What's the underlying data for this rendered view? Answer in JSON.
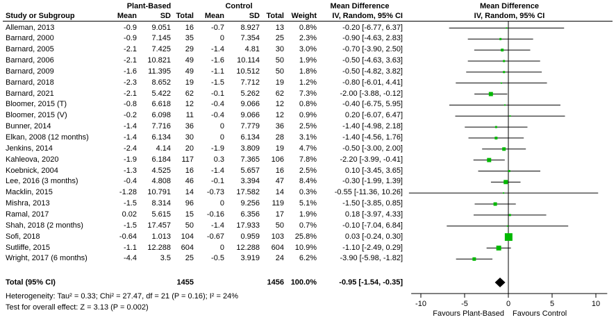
{
  "header": {
    "group1": "Plant-Based",
    "group2": "Control",
    "md_text_title": "Mean Difference",
    "md_plot_title": "Mean Difference",
    "col_study": "Study or Subgroup",
    "col_mean1": "Mean",
    "col_sd1": "SD",
    "col_total1": "Total",
    "col_mean2": "Mean",
    "col_sd2": "SD",
    "col_total2": "Total",
    "col_weight": "Weight",
    "col_ci": "IV, Random, 95% CI",
    "col_plot_ci": "IV, Random, 95% CI"
  },
  "table": {
    "rows": [
      {
        "name": "Alleman, 2013",
        "pb_mean": "-0.9",
        "pb_sd": "9.051",
        "pb_total": "16",
        "c_mean": "-0.7",
        "c_sd": "8.927",
        "c_total": "13",
        "weight": "0.8%",
        "ci": "-0.20 [-6.77, 6.37]"
      },
      {
        "name": "Barnard, 2000",
        "pb_mean": "-0.9",
        "pb_sd": "7.145",
        "pb_total": "35",
        "c_mean": "0",
        "c_sd": "7.354",
        "c_total": "25",
        "weight": "2.3%",
        "ci": "-0.90 [-4.63, 2.83]"
      },
      {
        "name": "Barnard, 2005",
        "pb_mean": "-2.1",
        "pb_sd": "7.425",
        "pb_total": "29",
        "c_mean": "-1.4",
        "c_sd": "4.81",
        "c_total": "30",
        "weight": "3.0%",
        "ci": "-0.70 [-3.90, 2.50]"
      },
      {
        "name": "Barnard, 2006",
        "pb_mean": "-2.1",
        "pb_sd": "10.821",
        "pb_total": "49",
        "c_mean": "-1.6",
        "c_sd": "10.114",
        "c_total": "50",
        "weight": "1.9%",
        "ci": "-0.50 [-4.63, 3.63]"
      },
      {
        "name": "Barnard, 2009",
        "pb_mean": "-1.6",
        "pb_sd": "11.395",
        "pb_total": "49",
        "c_mean": "-1.1",
        "c_sd": "10.512",
        "c_total": "50",
        "weight": "1.8%",
        "ci": "-0.50 [-4.82, 3.82]"
      },
      {
        "name": "Barnard, 2018",
        "pb_mean": "-2.3",
        "pb_sd": "8.652",
        "pb_total": "19",
        "c_mean": "-1.5",
        "c_sd": "7.712",
        "c_total": "19",
        "weight": "1.2%",
        "ci": "-0.80 [-6.01, 4.41]"
      },
      {
        "name": "Barnard, 2021",
        "pb_mean": "-2.1",
        "pb_sd": "5.422",
        "pb_total": "62",
        "c_mean": "-0.1",
        "c_sd": "5.262",
        "c_total": "62",
        "weight": "7.3%",
        "ci": "-2.00 [-3.88, -0.12]"
      },
      {
        "name": "Bloomer, 2015 (T)",
        "pb_mean": "-0.8",
        "pb_sd": "6.618",
        "pb_total": "12",
        "c_mean": "-0.4",
        "c_sd": "9.066",
        "c_total": "12",
        "weight": "0.8%",
        "ci": "-0.40 [-6.75, 5.95]"
      },
      {
        "name": "Bloomer, 2015 (V)",
        "pb_mean": "-0.2",
        "pb_sd": "6.098",
        "pb_total": "11",
        "c_mean": "-0.4",
        "c_sd": "9.066",
        "c_total": "12",
        "weight": "0.9%",
        "ci": "0.20 [-6.07, 6.47]"
      },
      {
        "name": "Bunner, 2014",
        "pb_mean": "-1.4",
        "pb_sd": "7.716",
        "pb_total": "36",
        "c_mean": "0",
        "c_sd": "7.779",
        "c_total": "36",
        "weight": "2.5%",
        "ci": "-1.40 [-4.98, 2.18]"
      },
      {
        "name": "Elkan, 2008 (12 months)",
        "pb_mean": "-1.4",
        "pb_sd": "6.134",
        "pb_total": "30",
        "c_mean": "0",
        "c_sd": "6.134",
        "c_total": "28",
        "weight": "3.1%",
        "ci": "-1.40 [-4.56, 1.76]"
      },
      {
        "name": "Jenkins, 2014",
        "pb_mean": "-2.4",
        "pb_sd": "4.14",
        "pb_total": "20",
        "c_mean": "-1.9",
        "c_sd": "3.809",
        "c_total": "19",
        "weight": "4.7%",
        "ci": "-0.50 [-3.00, 2.00]"
      },
      {
        "name": "Kahleova, 2020",
        "pb_mean": "-1.9",
        "pb_sd": "6.184",
        "pb_total": "117",
        "c_mean": "0.3",
        "c_sd": "7.365",
        "c_total": "106",
        "weight": "7.8%",
        "ci": "-2.20 [-3.99, -0.41]"
      },
      {
        "name": "Koebnick, 2004",
        "pb_mean": "-1.3",
        "pb_sd": "4.525",
        "pb_total": "16",
        "c_mean": "-1.4",
        "c_sd": "5.657",
        "c_total": "16",
        "weight": "2.5%",
        "ci": "0.10 [-3.45, 3.65]"
      },
      {
        "name": "Lee, 2016 (3 months)",
        "pb_mean": "-0.4",
        "pb_sd": "4.808",
        "pb_total": "46",
        "c_mean": "-0.1",
        "c_sd": "3.394",
        "c_total": "47",
        "weight": "8.4%",
        "ci": "-0.30 [-1.99, 1.39]"
      },
      {
        "name": "Macklin, 2015",
        "pb_mean": "-1.28",
        "pb_sd": "10.791",
        "pb_total": "14",
        "c_mean": "-0.73",
        "c_sd": "17.582",
        "c_total": "14",
        "weight": "0.3%",
        "ci": "-0.55 [-11.36, 10.26]"
      },
      {
        "name": "Mishra, 2013",
        "pb_mean": "-1.5",
        "pb_sd": "8.314",
        "pb_total": "96",
        "c_mean": "0",
        "c_sd": "9.256",
        "c_total": "119",
        "weight": "5.1%",
        "ci": "-1.50 [-3.85, 0.85]"
      },
      {
        "name": "Ramal, 2017",
        "pb_mean": "0.02",
        "pb_sd": "5.615",
        "pb_total": "15",
        "c_mean": "-0.16",
        "c_sd": "6.356",
        "c_total": "17",
        "weight": "1.9%",
        "ci": "0.18 [-3.97, 4.33]"
      },
      {
        "name": "Shah, 2018 (2 months)",
        "pb_mean": "-1.5",
        "pb_sd": "17.457",
        "pb_total": "50",
        "c_mean": "-1.4",
        "c_sd": "17.933",
        "c_total": "50",
        "weight": "0.7%",
        "ci": "-0.10 [-7.04, 6.84]"
      },
      {
        "name": "Sofi, 2018",
        "pb_mean": "-0.64",
        "pb_sd": "1.013",
        "pb_total": "104",
        "c_mean": "-0.67",
        "c_sd": "0.959",
        "c_total": "103",
        "weight": "25.8%",
        "ci": "0.03 [-0.24, 0.30]"
      },
      {
        "name": "Sutliffe, 2015",
        "pb_mean": "-1.1",
        "pb_sd": "12.288",
        "pb_total": "604",
        "c_mean": "0",
        "c_sd": "12.288",
        "c_total": "604",
        "weight": "10.9%",
        "ci": "-1.10 [-2.49, 0.29]"
      },
      {
        "name": "Wright, 2017 (6 months)",
        "pb_mean": "-4.4",
        "pb_sd": "3.5",
        "pb_total": "25",
        "c_mean": "-0.5",
        "c_sd": "3.919",
        "c_total": "24",
        "weight": "6.2%",
        "ci": "-3.90 [-5.98, -1.82]"
      }
    ]
  },
  "total_row": {
    "label": "Total (95% CI)",
    "pb_total": "1455",
    "c_total": "1456",
    "weight": "100.0%",
    "ci": "-0.95 [-1.54, -0.35]"
  },
  "footer": {
    "heterogeneity": "Heterogeneity: Tau² = 0.33; Chi² = 27.47, df = 21 (P = 0.16); I² = 24%",
    "overall": "Test for overall effect: Z = 3.13 (P = 0.002)"
  },
  "chart_data": {
    "type": "forest",
    "effect_measure": "Mean Difference",
    "method": "IV, Random, 95% CI",
    "x_ticks": [
      -10,
      -5,
      0,
      5,
      10
    ],
    "x_tick_labels": [
      "-10",
      "-5",
      "0",
      "5",
      "10"
    ],
    "xlim": [
      -11.1,
      11.3
    ],
    "zero_line": 0,
    "favours_left": "Favours Plant-Based",
    "favours_right": "Favours Control",
    "marker_color": "#00b800",
    "diamond_color": "#000000",
    "points": [
      {
        "study": "Alleman, 2013",
        "md": -0.2,
        "ci_low": -6.77,
        "ci_high": 6.37,
        "weight_pct": 0.8
      },
      {
        "study": "Barnard, 2000",
        "md": -0.9,
        "ci_low": -4.63,
        "ci_high": 2.83,
        "weight_pct": 2.3
      },
      {
        "study": "Barnard, 2005",
        "md": -0.7,
        "ci_low": -3.9,
        "ci_high": 2.5,
        "weight_pct": 3.0
      },
      {
        "study": "Barnard, 2006",
        "md": -0.5,
        "ci_low": -4.63,
        "ci_high": 3.63,
        "weight_pct": 1.9
      },
      {
        "study": "Barnard, 2009",
        "md": -0.5,
        "ci_low": -4.82,
        "ci_high": 3.82,
        "weight_pct": 1.8
      },
      {
        "study": "Barnard, 2018",
        "md": -0.8,
        "ci_low": -6.01,
        "ci_high": 4.41,
        "weight_pct": 1.2
      },
      {
        "study": "Barnard, 2021",
        "md": -2.0,
        "ci_low": -3.88,
        "ci_high": -0.12,
        "weight_pct": 7.3
      },
      {
        "study": "Bloomer, 2015 (T)",
        "md": -0.4,
        "ci_low": -6.75,
        "ci_high": 5.95,
        "weight_pct": 0.8
      },
      {
        "study": "Bloomer, 2015 (V)",
        "md": 0.2,
        "ci_low": -6.07,
        "ci_high": 6.47,
        "weight_pct": 0.9
      },
      {
        "study": "Bunner, 2014",
        "md": -1.4,
        "ci_low": -4.98,
        "ci_high": 2.18,
        "weight_pct": 2.5
      },
      {
        "study": "Elkan, 2008 (12 months)",
        "md": -1.4,
        "ci_low": -4.56,
        "ci_high": 1.76,
        "weight_pct": 3.1
      },
      {
        "study": "Jenkins, 2014",
        "md": -0.5,
        "ci_low": -3.0,
        "ci_high": 2.0,
        "weight_pct": 4.7
      },
      {
        "study": "Kahleova, 2020",
        "md": -2.2,
        "ci_low": -3.99,
        "ci_high": -0.41,
        "weight_pct": 7.8
      },
      {
        "study": "Koebnick, 2004",
        "md": 0.1,
        "ci_low": -3.45,
        "ci_high": 3.65,
        "weight_pct": 2.5
      },
      {
        "study": "Lee, 2016 (3 months)",
        "md": -0.3,
        "ci_low": -1.99,
        "ci_high": 1.39,
        "weight_pct": 8.4
      },
      {
        "study": "Macklin, 2015",
        "md": -0.55,
        "ci_low": -11.36,
        "ci_high": 10.26,
        "weight_pct": 0.3
      },
      {
        "study": "Mishra, 2013",
        "md": -1.5,
        "ci_low": -3.85,
        "ci_high": 0.85,
        "weight_pct": 5.1
      },
      {
        "study": "Ramal, 2017",
        "md": 0.18,
        "ci_low": -3.97,
        "ci_high": 4.33,
        "weight_pct": 1.9
      },
      {
        "study": "Shah, 2018 (2 months)",
        "md": -0.1,
        "ci_low": -7.04,
        "ci_high": 6.84,
        "weight_pct": 0.7
      },
      {
        "study": "Sofi, 2018",
        "md": 0.03,
        "ci_low": -0.24,
        "ci_high": 0.3,
        "weight_pct": 25.8
      },
      {
        "study": "Sutliffe, 2015",
        "md": -1.1,
        "ci_low": -2.49,
        "ci_high": 0.29,
        "weight_pct": 10.9
      },
      {
        "study": "Wright, 2017 (6 months)",
        "md": -3.9,
        "ci_low": -5.98,
        "ci_high": -1.82,
        "weight_pct": 6.2
      }
    ],
    "total": {
      "study": "Total (95% CI)",
      "md": -0.95,
      "ci_low": -1.54,
      "ci_high": -0.35,
      "weight_pct": 100.0
    }
  }
}
